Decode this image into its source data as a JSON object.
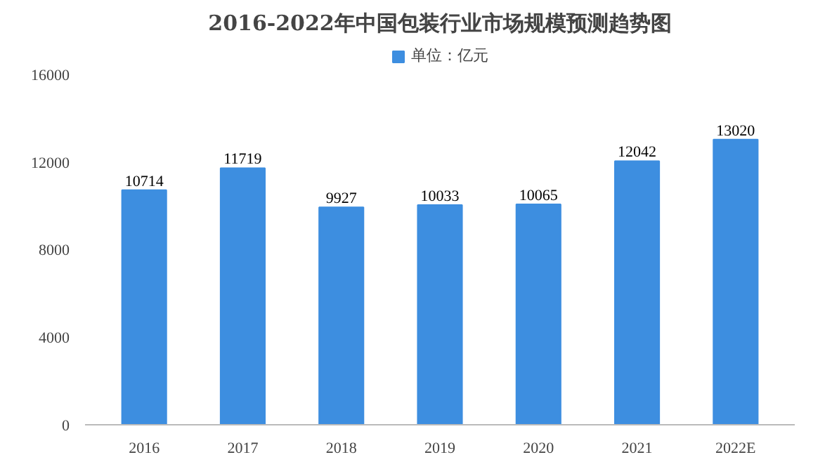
{
  "chart_data": {
    "type": "bar",
    "title": "2016-2022年中国包装行业市场规模预测趋势图",
    "categories": [
      "2016",
      "2017",
      "2018",
      "2019",
      "2020",
      "2021",
      "2022E"
    ],
    "series": [
      {
        "name": "单位：亿元",
        "color": "#3d8ee0",
        "values": [
          10714,
          11719,
          9927,
          10033,
          10065,
          12042,
          13020
        ]
      }
    ],
    "ylim": [
      0,
      16000
    ],
    "yticks": [
      0,
      4000,
      8000,
      12000,
      16000
    ],
    "grid": false,
    "legend": "top",
    "data_labels": true
  }
}
